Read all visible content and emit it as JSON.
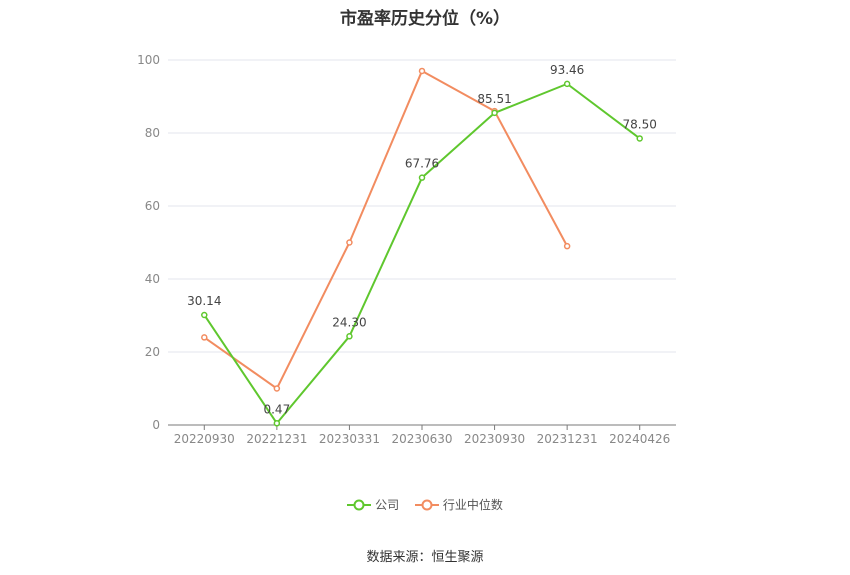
{
  "title": "市盈率历史分位（%）",
  "source": "数据来源：恒生聚源",
  "chart_data": {
    "type": "line",
    "categories": [
      "20220930",
      "20221231",
      "20230331",
      "20230630",
      "20230930",
      "20231231",
      "20240426"
    ],
    "ylim": [
      0,
      100
    ],
    "yticks": [
      0,
      20,
      40,
      60,
      80,
      100
    ],
    "grid": true,
    "legend_position": "bottom-center",
    "series": [
      {
        "name": "公司",
        "color": "#5fc72e",
        "values": [
          30.14,
          0.47,
          24.3,
          67.76,
          85.51,
          93.46,
          78.5
        ],
        "labels": [
          "30.14",
          "0.47",
          "24.30",
          "67.76",
          "85.51",
          "93.46",
          "78.50"
        ]
      },
      {
        "name": "行业中位数",
        "color": "#f28c60",
        "values": [
          24,
          10,
          50,
          97,
          86,
          49,
          null
        ]
      }
    ]
  }
}
